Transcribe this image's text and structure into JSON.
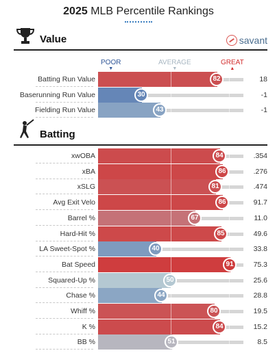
{
  "title": {
    "year": "2025",
    "rest": "MLB Percentile Rankings"
  },
  "scale": {
    "poor": "POOR",
    "average": "AVERAGE",
    "great": "GREAT"
  },
  "sections": {
    "value": {
      "label": "Value",
      "brand": "savant"
    },
    "batting": {
      "label": "Batting"
    }
  },
  "chart_data": {
    "type": "bar",
    "xlim": [
      0,
      100
    ],
    "colors": {
      "great": "#d22d2d",
      "poor": "#325aa5",
      "average": "#b4c8d2"
    },
    "value_rows": [
      {
        "label": "Batting Run Value",
        "percentile": 82,
        "value": "18"
      },
      {
        "label": "Baserunning Run Value",
        "percentile": 30,
        "value": "-1"
      },
      {
        "label": "Fielding Run Value",
        "percentile": 43,
        "value": "-1"
      }
    ],
    "batting_rows": [
      {
        "label": "xwOBA",
        "percentile": 84,
        "value": ".354"
      },
      {
        "label": "xBA",
        "percentile": 86,
        "value": ".276"
      },
      {
        "label": "xSLG",
        "percentile": 81,
        "value": ".474"
      },
      {
        "label": "Avg Exit Velo",
        "percentile": 86,
        "value": "91.7"
      },
      {
        "label": "Barrel %",
        "percentile": 67,
        "value": "11.0"
      },
      {
        "label": "Hard-Hit %",
        "percentile": 85,
        "value": "49.6"
      },
      {
        "label": "LA Sweet-Spot %",
        "percentile": 40,
        "value": "33.8"
      },
      {
        "label": "Bat Speed",
        "percentile": 91,
        "value": "75.3"
      },
      {
        "label": "Squared-Up %",
        "percentile": 50,
        "value": "25.6"
      },
      {
        "label": "Chase %",
        "percentile": 44,
        "value": "28.8"
      },
      {
        "label": "Whiff %",
        "percentile": 80,
        "value": "19.5"
      },
      {
        "label": "K %",
        "percentile": 84,
        "value": "15.2"
      },
      {
        "label": "BB %",
        "percentile": 51,
        "value": "8.5"
      }
    ]
  }
}
